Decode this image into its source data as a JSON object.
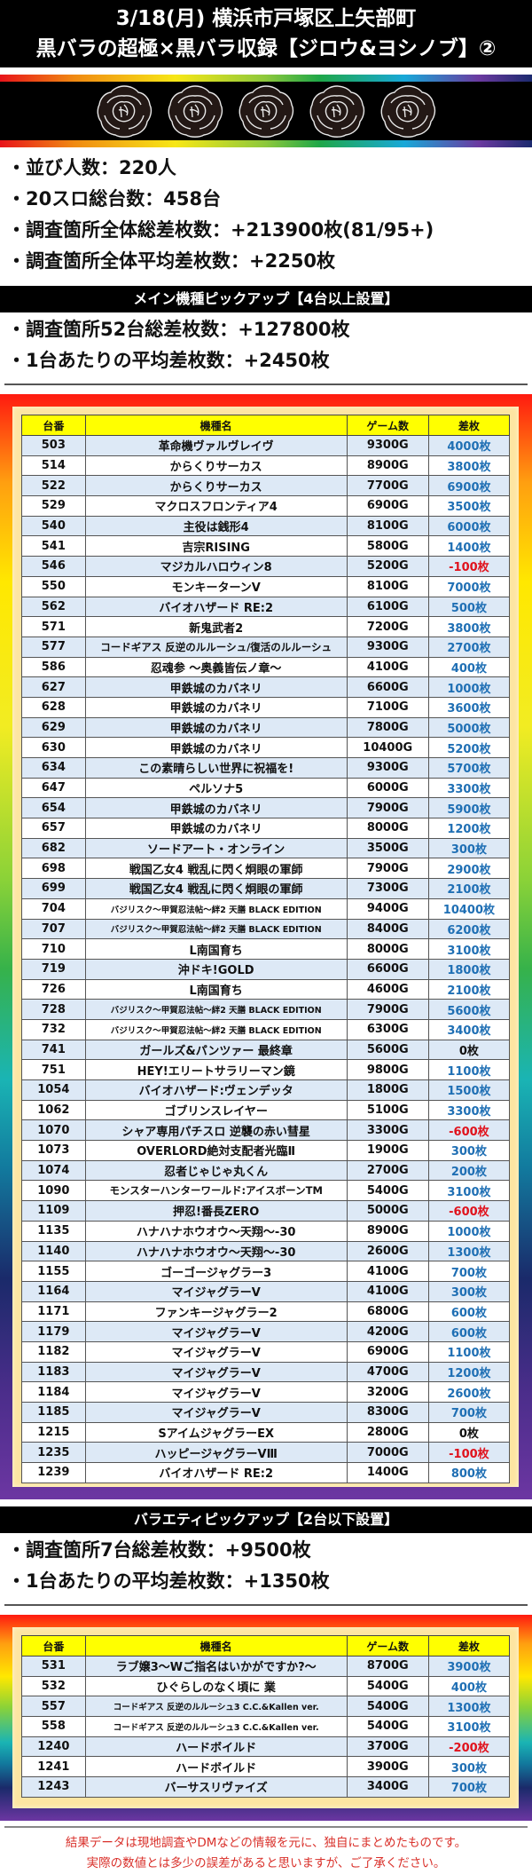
{
  "header": {
    "title_line1": "3/18(月) 横浜市戸塚区上矢部町",
    "title_line2": "黒バラの超極×黒バラ収録【ジロウ&ヨシノブ】②",
    "rose_count": 5,
    "rose_icon": "black-rose-icon"
  },
  "overall_stats": [
    "・並び人数：220人",
    "・20スロ総台数：458台",
    "・調査箇所全体総差枚数：+213900枚(81/95+)",
    "・調査箇所全体平均差枚数：+2250枚"
  ],
  "main_section": {
    "title": "メイン機種ピックアップ【4台以上設置】",
    "stats": [
      "・調査箇所52台総差枚数：+127800枚",
      "・1台あたりの平均差枚数：+2450枚"
    ],
    "columns": [
      "台番",
      "機種名",
      "ゲーム数",
      "差枚"
    ],
    "rows": [
      {
        "no": "503",
        "name": "革命機ヴァルヴレイヴ",
        "games": "9300G",
        "diff": "4000枚"
      },
      {
        "no": "514",
        "name": "からくりサーカス",
        "games": "8900G",
        "diff": "3800枚"
      },
      {
        "no": "522",
        "name": "からくりサーカス",
        "games": "7700G",
        "diff": "6900枚"
      },
      {
        "no": "529",
        "name": "マクロスフロンティア4",
        "games": "6900G",
        "diff": "3500枚"
      },
      {
        "no": "540",
        "name": "主役は銭形4",
        "games": "8100G",
        "diff": "6000枚"
      },
      {
        "no": "541",
        "name": "吉宗RISING",
        "games": "5800G",
        "diff": "1400枚"
      },
      {
        "no": "546",
        "name": "マジカルハロウィン8",
        "games": "5200G",
        "diff": "-100枚"
      },
      {
        "no": "550",
        "name": "モンキーターンV",
        "games": "8100G",
        "diff": "7000枚"
      },
      {
        "no": "562",
        "name": "バイオハザード RE:2",
        "games": "6100G",
        "diff": "500枚"
      },
      {
        "no": "571",
        "name": "新鬼武者2",
        "games": "7200G",
        "diff": "3800枚"
      },
      {
        "no": "577",
        "name": "コードギアス 反逆のルルーシュ/復活のルルーシュ",
        "games": "9300G",
        "diff": "2700枚"
      },
      {
        "no": "586",
        "name": "忍魂参 ～奥義皆伝ノ章～",
        "games": "4100G",
        "diff": "400枚"
      },
      {
        "no": "627",
        "name": "甲鉄城のカバネリ",
        "games": "6600G",
        "diff": "1000枚"
      },
      {
        "no": "628",
        "name": "甲鉄城のカバネリ",
        "games": "7100G",
        "diff": "3600枚"
      },
      {
        "no": "629",
        "name": "甲鉄城のカバネリ",
        "games": "7800G",
        "diff": "5000枚"
      },
      {
        "no": "630",
        "name": "甲鉄城のカバネリ",
        "games": "10400G",
        "diff": "5200枚"
      },
      {
        "no": "634",
        "name": "この素晴らしい世界に祝福を!",
        "games": "9300G",
        "diff": "5700枚"
      },
      {
        "no": "647",
        "name": "ペルソナ5",
        "games": "6000G",
        "diff": "3300枚"
      },
      {
        "no": "654",
        "name": "甲鉄城のカバネリ",
        "games": "7900G",
        "diff": "5900枚"
      },
      {
        "no": "657",
        "name": "甲鉄城のカバネリ",
        "games": "8000G",
        "diff": "1200枚"
      },
      {
        "no": "682",
        "name": "ソードアート・オンライン",
        "games": "3500G",
        "diff": "300枚"
      },
      {
        "no": "698",
        "name": "戦国乙女4 戦乱に閃く炯眼の軍師",
        "games": "7900G",
        "diff": "2900枚"
      },
      {
        "no": "699",
        "name": "戦国乙女4 戦乱に閃く炯眼の軍師",
        "games": "7300G",
        "diff": "2100枚"
      },
      {
        "no": "704",
        "name": "バジリスク～甲賀忍法帖～絆2 天膳 BLACK EDITION",
        "games": "9400G",
        "diff": "10400枚"
      },
      {
        "no": "707",
        "name": "バジリスク～甲賀忍法帖～絆2 天膳 BLACK EDITION",
        "games": "8400G",
        "diff": "6200枚"
      },
      {
        "no": "710",
        "name": "L南国育ち",
        "games": "8000G",
        "diff": "3100枚"
      },
      {
        "no": "719",
        "name": "沖ドキ!GOLD",
        "games": "6600G",
        "diff": "1800枚"
      },
      {
        "no": "726",
        "name": "L南国育ち",
        "games": "4600G",
        "diff": "2100枚"
      },
      {
        "no": "728",
        "name": "バジリスク～甲賀忍法帖～絆2 天膳 BLACK EDITION",
        "games": "7900G",
        "diff": "5600枚"
      },
      {
        "no": "732",
        "name": "バジリスク～甲賀忍法帖～絆2 天膳 BLACK EDITION",
        "games": "6300G",
        "diff": "3400枚"
      },
      {
        "no": "741",
        "name": "ガールズ&パンツァー 最終章",
        "games": "5600G",
        "diff": "0枚"
      },
      {
        "no": "751",
        "name": "HEY!エリートサラリーマン鏡",
        "games": "9800G",
        "diff": "1100枚"
      },
      {
        "no": "1054",
        "name": "バイオハザード:ヴェンデッタ",
        "games": "1800G",
        "diff": "1500枚"
      },
      {
        "no": "1062",
        "name": "ゴブリンスレイヤー",
        "games": "5100G",
        "diff": "3300枚"
      },
      {
        "no": "1070",
        "name": "シャア専用パチスロ 逆襲の赤い彗星",
        "games": "3300G",
        "diff": "-600枚"
      },
      {
        "no": "1073",
        "name": "OVERLORD絶対支配者光臨Ⅱ",
        "games": "1900G",
        "diff": "300枚"
      },
      {
        "no": "1074",
        "name": "忍者じゃじゃ丸くん",
        "games": "2700G",
        "diff": "200枚"
      },
      {
        "no": "1090",
        "name": "モンスターハンターワールド:アイスボーンTM",
        "games": "5400G",
        "diff": "3100枚"
      },
      {
        "no": "1109",
        "name": "押忍!番長ZERO",
        "games": "5000G",
        "diff": "-600枚"
      },
      {
        "no": "1135",
        "name": "ハナハナホウオウ～天翔～-30",
        "games": "8900G",
        "diff": "1000枚"
      },
      {
        "no": "1140",
        "name": "ハナハナホウオウ～天翔～-30",
        "games": "2600G",
        "diff": "1300枚"
      },
      {
        "no": "1155",
        "name": "ゴーゴージャグラー3",
        "games": "4100G",
        "diff": "700枚"
      },
      {
        "no": "1164",
        "name": "マイジャグラーV",
        "games": "4100G",
        "diff": "300枚"
      },
      {
        "no": "1171",
        "name": "ファンキージャグラー2",
        "games": "6800G",
        "diff": "600枚"
      },
      {
        "no": "1179",
        "name": "マイジャグラーV",
        "games": "4200G",
        "diff": "600枚"
      },
      {
        "no": "1182",
        "name": "マイジャグラーV",
        "games": "6900G",
        "diff": "1100枚"
      },
      {
        "no": "1183",
        "name": "マイジャグラーV",
        "games": "4700G",
        "diff": "1200枚"
      },
      {
        "no": "1184",
        "name": "マイジャグラーV",
        "games": "3200G",
        "diff": "2600枚"
      },
      {
        "no": "1185",
        "name": "マイジャグラーV",
        "games": "8300G",
        "diff": "700枚"
      },
      {
        "no": "1215",
        "name": "SアイムジャグラーEX",
        "games": "2800G",
        "diff": "0枚"
      },
      {
        "no": "1235",
        "name": "ハッピージャグラーVⅢ",
        "games": "7000G",
        "diff": "-100枚"
      },
      {
        "no": "1239",
        "name": "バイオハザード RE:2",
        "games": "1400G",
        "diff": "800枚"
      }
    ]
  },
  "variety_section": {
    "title": "バラエティピックアップ【2台以下設置】",
    "stats": [
      "・調査箇所7台総差枚数：+9500枚",
      "・1台あたりの平均差枚数：+1350枚"
    ],
    "columns": [
      "台番",
      "機種名",
      "ゲーム数",
      "差枚"
    ],
    "rows": [
      {
        "no": "531",
        "name": "ラブ嬢3～Wご指名はいかがですか?～",
        "games": "8700G",
        "diff": "3900枚"
      },
      {
        "no": "532",
        "name": "ひぐらしのなく頃に 業",
        "games": "5400G",
        "diff": "400枚"
      },
      {
        "no": "557",
        "name": "コードギアス 反逆のルルーシュ3 C.C.&Kallen ver.",
        "games": "5400G",
        "diff": "1300枚"
      },
      {
        "no": "558",
        "name": "コードギアス 反逆のルルーシュ3 C.C.&Kallen ver.",
        "games": "5400G",
        "diff": "3100枚"
      },
      {
        "no": "1240",
        "name": "ハードボイルド",
        "games": "3700G",
        "diff": "-200枚"
      },
      {
        "no": "1241",
        "name": "ハードボイルド",
        "games": "3900G",
        "diff": "300枚"
      },
      {
        "no": "1243",
        "name": "バーサスリヴァイズ",
        "games": "3400G",
        "diff": "700枚"
      }
    ]
  },
  "footer": {
    "line1": "結果データは現地調査やDMなどの情報を元に、独自にまとめたものです。",
    "line2": "実際の数値とは多少の誤差があると思いますが、ご了承ください。"
  },
  "colors": {
    "positive_diff": "#1f6fb4",
    "negative_diff": "#e0121c",
    "header_yellow": "#ffff00",
    "row_alt": "#dde9f6",
    "frame_inner": "#fde5a2",
    "footer_text": "#d9302a"
  }
}
